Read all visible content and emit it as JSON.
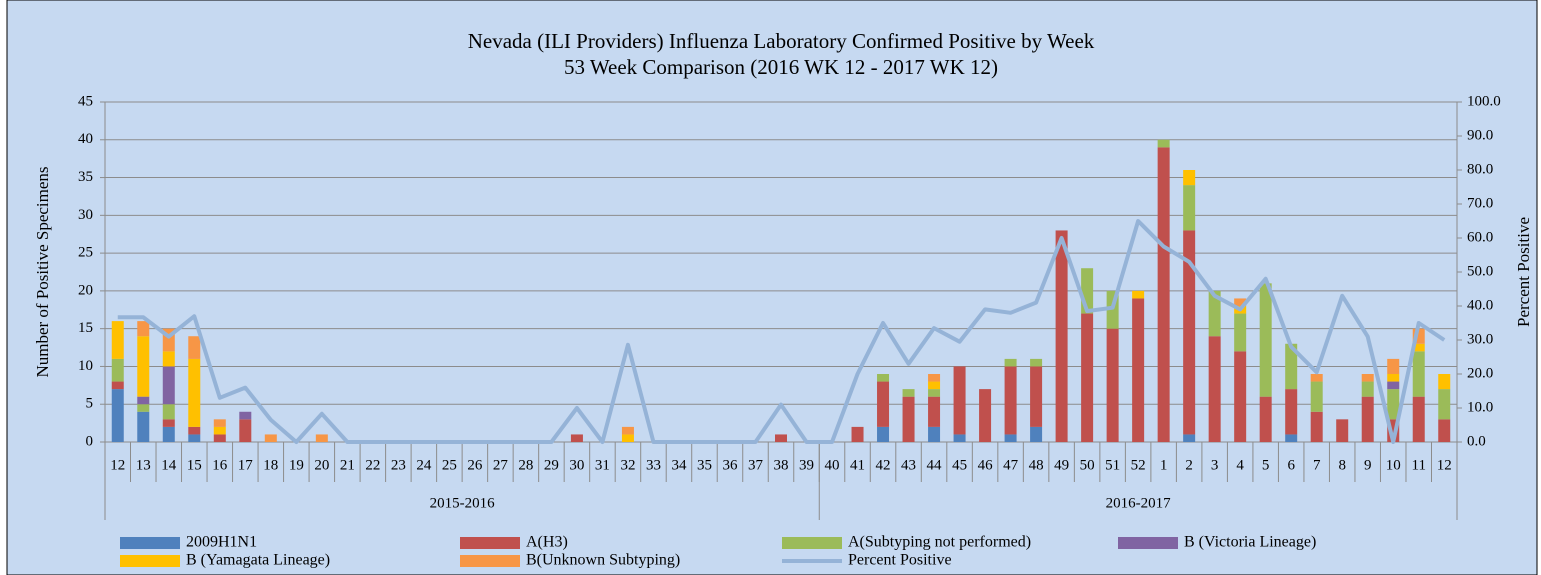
{
  "chart_data": {
    "type": "bar",
    "stacked": true,
    "title": "Nevada (ILI Providers) Influenza Laboratory Confirmed Positive by Week",
    "subtitle": "53 Week Comparison (2016 WK 12 - 2017 WK 12)",
    "y_label": "Number of Positive Specimens",
    "y2_label": "Percent Positive",
    "groups": [
      {
        "name": "2015-2016",
        "categories": [
          "12",
          "13",
          "14",
          "15",
          "16",
          "17",
          "18",
          "19",
          "20",
          "21",
          "22",
          "23",
          "24",
          "25",
          "26",
          "27",
          "28",
          "29",
          "30",
          "31",
          "32",
          "33",
          "34",
          "35",
          "36",
          "37",
          "38",
          "39"
        ]
      },
      {
        "name": "2016-2017",
        "categories": [
          "40",
          "41",
          "42",
          "43",
          "44",
          "45",
          "46",
          "47",
          "48",
          "49",
          "50",
          "51",
          "52",
          "1",
          "2",
          "3",
          "4",
          "5",
          "6",
          "7",
          "8",
          "9",
          "10",
          "11",
          "12"
        ]
      }
    ],
    "ylim": [
      0,
      45
    ],
    "yticks": [
      0,
      5,
      10,
      15,
      20,
      25,
      30,
      35,
      40,
      45
    ],
    "y2lim": [
      0,
      100
    ],
    "y2ticks": [
      {
        "value": 0,
        "label": "0.0"
      },
      {
        "value": 10,
        "label": "10.0"
      },
      {
        "value": 20,
        "label": "20.0"
      },
      {
        "value": 30,
        "label": "30.0"
      },
      {
        "value": 40,
        "label": "40.0"
      },
      {
        "value": 50,
        "label": "50.0"
      },
      {
        "value": 60,
        "label": "60.0"
      },
      {
        "value": 70,
        "label": "70.0"
      },
      {
        "value": 80,
        "label": "80.0"
      },
      {
        "value": 90,
        "label": "90.0"
      },
      {
        "value": 100,
        "label": "100.0"
      }
    ],
    "grid": true,
    "series": [
      {
        "name": "2009H1N1",
        "color": "#4f81bd",
        "values": [
          7,
          4,
          2,
          1,
          0,
          0,
          0,
          0,
          0,
          0,
          0,
          0,
          0,
          0,
          0,
          0,
          0,
          0,
          0,
          0,
          0,
          0,
          0,
          0,
          0,
          0,
          0,
          0,
          0,
          0,
          2,
          0,
          2,
          1,
          0,
          1,
          2,
          0,
          0,
          0,
          0,
          0,
          1,
          0,
          0,
          0,
          1,
          0,
          0,
          0,
          0,
          0,
          0
        ]
      },
      {
        "name": "A(H3)",
        "color": "#c0504d",
        "values": [
          1,
          0,
          1,
          1,
          1,
          3,
          0,
          0,
          0,
          0,
          0,
          0,
          0,
          0,
          0,
          0,
          0,
          0,
          1,
          0,
          0,
          0,
          0,
          0,
          0,
          0,
          1,
          0,
          0,
          2,
          6,
          6,
          4,
          9,
          7,
          9,
          8,
          28,
          17,
          15,
          19,
          39,
          27,
          14,
          12,
          6,
          6,
          4,
          3,
          6,
          3,
          6,
          3
        ]
      },
      {
        "name": "A(Subtyping not performed)",
        "color": "#9bbb59",
        "values": [
          3,
          1,
          2,
          0,
          0,
          0,
          0,
          0,
          0,
          0,
          0,
          0,
          0,
          0,
          0,
          0,
          0,
          0,
          0,
          0,
          0,
          0,
          0,
          0,
          0,
          0,
          0,
          0,
          0,
          0,
          1,
          1,
          1,
          0,
          0,
          1,
          1,
          0,
          6,
          5,
          0,
          1,
          6,
          6,
          5,
          15,
          6,
          4,
          0,
          2,
          4,
          6,
          4
        ]
      },
      {
        "name": "B (Victoria Lineage)",
        "color": "#8064a2",
        "values": [
          0,
          1,
          5,
          0,
          0,
          1,
          0,
          0,
          0,
          0,
          0,
          0,
          0,
          0,
          0,
          0,
          0,
          0,
          0,
          0,
          0,
          0,
          0,
          0,
          0,
          0,
          0,
          0,
          0,
          0,
          0,
          0,
          0,
          0,
          0,
          0,
          0,
          0,
          0,
          0,
          0,
          0,
          0,
          0,
          0,
          0,
          0,
          0,
          0,
          0,
          1,
          0,
          0
        ]
      },
      {
        "name": "B (Yamagata Lineage)",
        "color": "#ffc000",
        "values": [
          5,
          8,
          2,
          9,
          1,
          0,
          0,
          0,
          0,
          0,
          0,
          0,
          0,
          0,
          0,
          0,
          0,
          0,
          0,
          0,
          1,
          0,
          0,
          0,
          0,
          0,
          0,
          0,
          0,
          0,
          0,
          0,
          1,
          0,
          0,
          0,
          0,
          0,
          0,
          0,
          1,
          0,
          2,
          0,
          1,
          0,
          0,
          0,
          0,
          0,
          1,
          1,
          2
        ]
      },
      {
        "name": "B(Unknown Subtyping)",
        "color": "#f79646",
        "values": [
          0,
          2,
          3,
          3,
          1,
          0,
          1,
          0,
          1,
          0,
          0,
          0,
          0,
          0,
          0,
          0,
          0,
          0,
          0,
          0,
          1,
          0,
          0,
          0,
          0,
          0,
          0,
          0,
          0,
          0,
          0,
          0,
          1,
          0,
          0,
          0,
          0,
          0,
          0,
          0,
          0,
          0,
          0,
          0,
          1,
          0,
          0,
          1,
          0,
          1,
          2,
          2,
          0
        ]
      },
      {
        "name": "Percent Positive",
        "type": "line",
        "axis": "y2",
        "color": "#95b3d7",
        "values": [
          36.7,
          36.7,
          31,
          37,
          13,
          16,
          6.5,
          0,
          8.3,
          0,
          0,
          0,
          0,
          0,
          0,
          0,
          0,
          0,
          10,
          0,
          28.6,
          0,
          0,
          0,
          0,
          0,
          11,
          0,
          0,
          20,
          35,
          23,
          33.5,
          29.5,
          39,
          38,
          41,
          60,
          38.5,
          39.5,
          65,
          57.5,
          53,
          43,
          39,
          48,
          28,
          20.5,
          43,
          31,
          0,
          35,
          30
        ]
      }
    ]
  }
}
